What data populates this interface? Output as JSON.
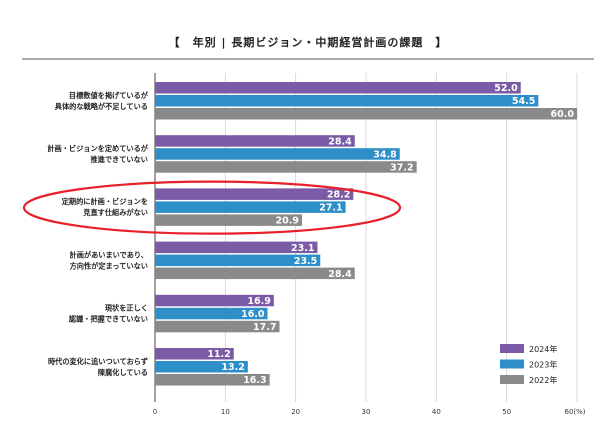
{
  "chart_data": {
    "type": "bar",
    "orientation": "horizontal",
    "title": "【　年別 | 長期ビジョン・中期経営計画の課題　】",
    "categories": [
      [
        "目標数値を掲げているが",
        "具体的な戦略が不足している"
      ],
      [
        "計画・ビジョンを定めているが",
        "推進できていない"
      ],
      [
        "定期的に計画・ビジョンを",
        "見直す仕組みがない"
      ],
      [
        "計画があいまいであり、",
        "方向性が定まっていない"
      ],
      [
        "現状を正しく",
        "認識・把握できていない"
      ],
      [
        "時代の変化に追いついておらず",
        "陳腐化している"
      ]
    ],
    "series": [
      {
        "name": "2024年",
        "color": "#7b5aa6",
        "values": [
          52.0,
          28.4,
          28.2,
          23.1,
          16.9,
          11.2
        ],
        "labels": [
          "52.0",
          "28.4",
          "28.2",
          "23.1",
          "16.9",
          "11.2"
        ]
      },
      {
        "name": "2023年",
        "color": "#2e8fc8",
        "values": [
          54.5,
          34.8,
          27.1,
          23.5,
          16.0,
          13.2
        ],
        "labels": [
          "54.5",
          "34.8",
          "27.1",
          "23.5",
          "16.0",
          "13.2"
        ]
      },
      {
        "name": "2022年",
        "color": "#8a8a8a",
        "values": [
          60.0,
          37.2,
          20.9,
          28.4,
          17.7,
          16.3
        ],
        "labels": [
          "60.0",
          "37.2",
          "20.9",
          "28.4",
          "17.7",
          "16.3"
        ]
      }
    ],
    "xlim": [
      0,
      60
    ],
    "xticks": [
      "0",
      "10",
      "20",
      "30",
      "40",
      "50",
      "60(%)"
    ],
    "grid": true,
    "legend_position": "bottom-right",
    "highlight": {
      "category_index": 2,
      "color": "#e8202a"
    }
  }
}
